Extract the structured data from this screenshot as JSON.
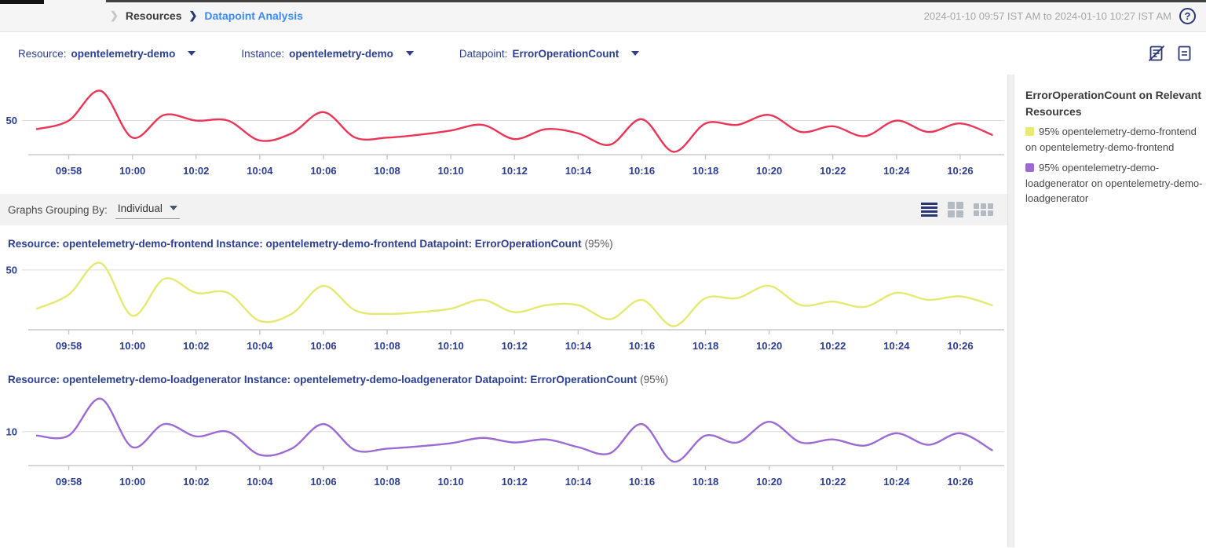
{
  "topbar": {
    "breadcrumb": {
      "parent": "Resources",
      "current": "Datapoint Analysis"
    },
    "time_range": "2024-01-10 09:57 IST AM to 2024-01-10 10:27 IST AM",
    "help_glyph": "?"
  },
  "filters": [
    {
      "label": "Resource:",
      "value": "opentelemetry-demo"
    },
    {
      "label": "Instance:",
      "value": "opentelemetry-demo"
    },
    {
      "label": "Datapoint:",
      "value": "ErrorOperationCount"
    }
  ],
  "icons": {
    "toolbar": [
      "annotations-off-icon",
      "report-icon"
    ],
    "view_modes": [
      "list-view-icon",
      "grid-2-view-icon",
      "grid-3-view-icon"
    ],
    "active_view": "list-view-icon"
  },
  "grouping": {
    "label": "Graphs Grouping By:",
    "value": "Individual"
  },
  "legend": {
    "title": "ErrorOperationCount on Relevant Resources",
    "items": [
      {
        "color": "#e6eb72",
        "label": "95% opentelemetry-demo-frontend on opentelemetry-demo-frontend"
      },
      {
        "color": "#9b6bd3",
        "label": "95% opentelemetry-demo-loadgenerator on opentelemetry-demo-loadgenerator"
      }
    ]
  },
  "colors": {
    "accent_navy": "#2c3e8f",
    "breadcrumb_blue": "#3d8af5",
    "red_series": "#ea3557",
    "yellow_series": "#e5e971",
    "purple_series": "#9b6bd3",
    "gridline": "#dcdcdc",
    "axis": "#c9c9c9"
  },
  "chart_data": [
    {
      "type": "line",
      "name": "combined-erroroperationcount",
      "title": null,
      "color": "#ea3557",
      "x": [
        "09:57",
        "09:58",
        "09:59",
        "10:00",
        "10:01",
        "10:02",
        "10:03",
        "10:04",
        "10:05",
        "10:06",
        "10:07",
        "10:08",
        "10:09",
        "10:10",
        "10:11",
        "10:12",
        "10:13",
        "10:14",
        "10:15",
        "10:16",
        "10:17",
        "10:18",
        "10:19",
        "10:20",
        "10:21",
        "10:22",
        "10:23",
        "10:24",
        "10:25",
        "10:26",
        "10:27"
      ],
      "x_ticks": [
        "09:58",
        "10:00",
        "10:02",
        "10:04",
        "10:06",
        "10:08",
        "10:10",
        "10:12",
        "10:14",
        "10:16",
        "10:18",
        "10:20",
        "10:22",
        "10:24",
        "10:26"
      ],
      "values": [
        44,
        50,
        71,
        38,
        54,
        50,
        50,
        36,
        41,
        56,
        38,
        38,
        40,
        43,
        47,
        37,
        44,
        41,
        33,
        51,
        28,
        48,
        47,
        54,
        42,
        46,
        39,
        50,
        42,
        48,
        40
      ],
      "ylim": [
        26,
        78
      ],
      "gridline_value": 50,
      "grid": "single-horizontal",
      "legend_position": "right-panel"
    },
    {
      "type": "line",
      "name": "frontend-erroroperationcount",
      "title": "Resource: opentelemetry-demo-frontend Instance: opentelemetry-demo-frontend Datapoint: ErrorOperationCount",
      "title_suffix": "(95%)",
      "color": "#e5e971",
      "x": [
        "09:57",
        "09:58",
        "09:59",
        "10:00",
        "10:01",
        "10:02",
        "10:03",
        "10:04",
        "10:05",
        "10:06",
        "10:07",
        "10:08",
        "10:09",
        "10:10",
        "10:11",
        "10:12",
        "10:13",
        "10:14",
        "10:15",
        "10:16",
        "10:17",
        "10:18",
        "10:19",
        "10:20",
        "10:21",
        "10:22",
        "10:23",
        "10:24",
        "10:25",
        "10:26",
        "10:27"
      ],
      "x_ticks": [
        "09:58",
        "10:00",
        "10:02",
        "10:04",
        "10:06",
        "10:08",
        "10:10",
        "10:12",
        "10:14",
        "10:16",
        "10:18",
        "10:20",
        "10:22",
        "10:24",
        "10:26"
      ],
      "values": [
        28,
        36,
        54,
        24,
        45,
        37,
        37,
        21,
        25,
        41,
        27,
        25,
        26,
        28,
        33,
        26,
        30,
        30,
        22,
        33,
        18,
        34,
        34,
        41,
        30,
        32,
        29,
        37,
        33,
        35,
        30
      ],
      "ylim": [
        16,
        58
      ],
      "gridline_value": 50,
      "grid": "single-horizontal"
    },
    {
      "type": "line",
      "name": "loadgenerator-erroroperationcount",
      "title": "Resource: opentelemetry-demo-loadgenerator Instance: opentelemetry-demo-loadgenerator Datapoint: ErrorOperationCount",
      "title_suffix": "(95%)",
      "color": "#9b6bd3",
      "x": [
        "09:57",
        "09:58",
        "09:59",
        "10:00",
        "10:01",
        "10:02",
        "10:03",
        "10:04",
        "10:05",
        "10:06",
        "10:07",
        "10:08",
        "10:09",
        "10:10",
        "10:11",
        "10:12",
        "10:13",
        "10:14",
        "10:15",
        "10:16",
        "10:17",
        "10:18",
        "10:19",
        "10:20",
        "10:21",
        "10:22",
        "10:23",
        "10:24",
        "10:25",
        "10:26",
        "10:27"
      ],
      "x_ticks": [
        "09:58",
        "10:00",
        "10:02",
        "10:04",
        "10:06",
        "10:08",
        "10:10",
        "10:12",
        "10:14",
        "10:16",
        "10:18",
        "10:20",
        "10:22",
        "10:24",
        "10:26"
      ],
      "values": [
        9.5,
        9.5,
        14.3,
        8,
        11,
        9.4,
        10,
        7,
        7.8,
        11,
        7.6,
        7.8,
        8.1,
        8.5,
        9.2,
        8.6,
        9,
        8,
        7.2,
        11,
        6.1,
        9.5,
        8.6,
        11.3,
        8.6,
        9,
        8.2,
        9.8,
        8.3,
        9.8,
        7.6
      ],
      "ylim": [
        5.6,
        15.2
      ],
      "gridline_value": 10,
      "grid": "single-horizontal"
    }
  ]
}
